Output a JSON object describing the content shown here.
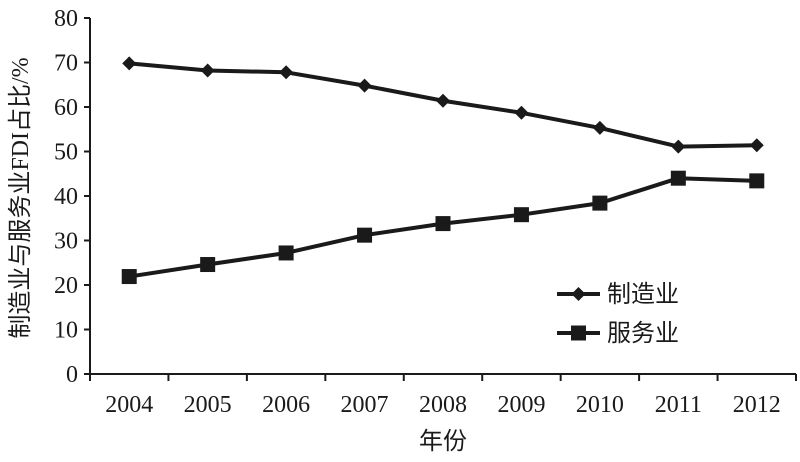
{
  "chart_data": {
    "type": "line",
    "title": "",
    "xlabel": "年份",
    "ylabel": "制造业与服务业FDI占比/%",
    "categories": [
      "2004",
      "2005",
      "2006",
      "2007",
      "2008",
      "2009",
      "2010",
      "2011",
      "2012"
    ],
    "ylim": [
      0,
      80
    ],
    "yticks": [
      "0",
      "10",
      "20",
      "30",
      "40",
      "50",
      "60",
      "70",
      "80"
    ],
    "grid": false,
    "legend_position": "right",
    "series": [
      {
        "name": "制造业",
        "marker": "diamond",
        "color": "#1a1a1a",
        "values": [
          69.8,
          68.2,
          67.8,
          64.8,
          61.4,
          58.7,
          55.3,
          51.1,
          51.4
        ]
      },
      {
        "name": "服务业",
        "marker": "square",
        "color": "#1a1a1a",
        "values": [
          21.9,
          24.6,
          27.2,
          31.2,
          33.8,
          35.8,
          38.4,
          44.0,
          43.4
        ]
      }
    ]
  }
}
